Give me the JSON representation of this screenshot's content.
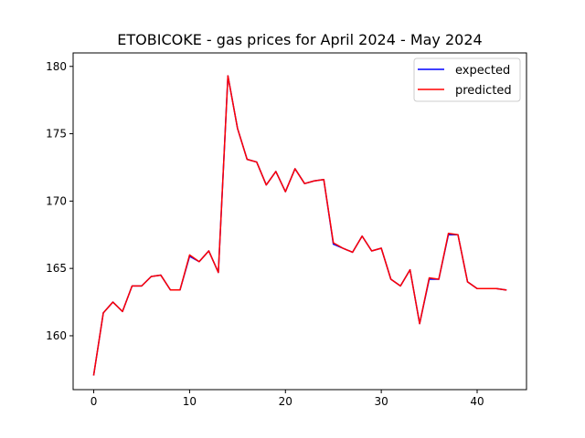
{
  "chart_data": {
    "type": "line",
    "title": "ETOBICOKE - gas prices for April 2024 - May 2024",
    "xlabel": "",
    "ylabel": "",
    "xlim": [
      -2.15,
      45.15
    ],
    "ylim": [
      156.0,
      181.0
    ],
    "xticks": [
      0,
      10,
      20,
      30,
      40
    ],
    "yticks": [
      160,
      165,
      170,
      175,
      180
    ],
    "grid": false,
    "legend_position": "top-right",
    "x": [
      0,
      1,
      2,
      3,
      4,
      5,
      6,
      7,
      8,
      9,
      10,
      11,
      12,
      13,
      14,
      15,
      16,
      17,
      18,
      19,
      20,
      21,
      22,
      23,
      24,
      25,
      26,
      27,
      28,
      29,
      30,
      31,
      32,
      33,
      34,
      35,
      36,
      37,
      38,
      39,
      40,
      41,
      42,
      43
    ],
    "series": [
      {
        "name": "expected",
        "color": "#0000ff",
        "values": [
          157.1,
          161.7,
          162.5,
          161.8,
          163.7,
          163.7,
          164.4,
          164.5,
          163.4,
          163.4,
          165.9,
          165.5,
          166.3,
          164.7,
          179.3,
          175.4,
          173.1,
          172.9,
          171.2,
          172.2,
          170.7,
          172.4,
          171.3,
          171.5,
          171.6,
          166.8,
          166.5,
          166.2,
          167.4,
          166.3,
          166.5,
          164.2,
          163.7,
          164.9,
          160.9,
          164.2,
          164.2,
          167.5,
          167.5,
          164.0,
          163.5,
          163.5,
          163.5,
          163.4
        ]
      },
      {
        "name": "predicted",
        "color": "#ff0000",
        "values": [
          157.1,
          161.7,
          162.5,
          161.8,
          163.7,
          163.7,
          164.4,
          164.5,
          163.4,
          163.4,
          166.0,
          165.5,
          166.3,
          164.7,
          179.3,
          175.4,
          173.1,
          172.9,
          171.2,
          172.2,
          170.7,
          172.4,
          171.3,
          171.5,
          171.6,
          166.9,
          166.5,
          166.2,
          167.4,
          166.3,
          166.5,
          164.2,
          163.7,
          164.9,
          160.9,
          164.3,
          164.2,
          167.6,
          167.5,
          164.0,
          163.5,
          163.5,
          163.5,
          163.4
        ]
      }
    ]
  }
}
